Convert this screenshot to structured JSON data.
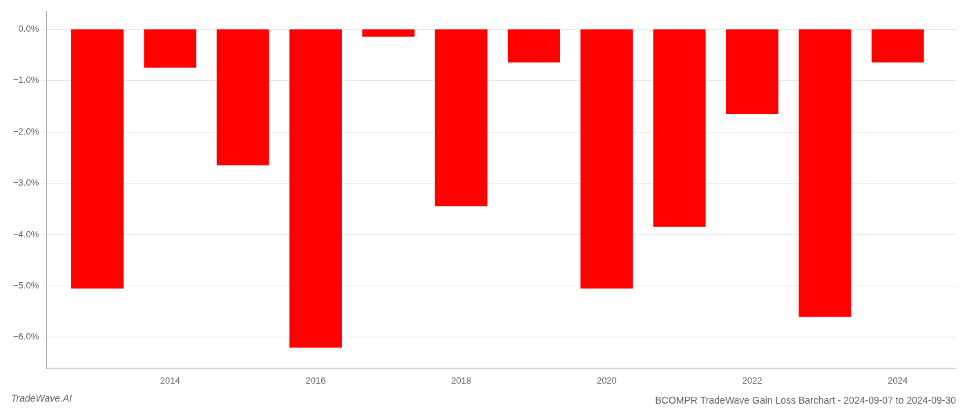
{
  "chart_data": {
    "type": "bar",
    "title": "BCOMPR TradeWave Gain Loss Barchart - 2024-09-07 to 2024-09-30",
    "annotations": [
      "TradeWave.AI"
    ],
    "x": [
      2013,
      2014,
      2015,
      2016,
      2017,
      2018,
      2019,
      2020,
      2021,
      2022,
      2023,
      2024
    ],
    "values": [
      -5.05,
      -0.75,
      -2.65,
      -6.2,
      -0.15,
      -3.45,
      -0.65,
      -5.05,
      -3.85,
      -1.65,
      -5.6,
      -0.65
    ],
    "color": "#ff0000",
    "xlim": [
      2012.3,
      2024.8
    ],
    "xticks": [
      2014,
      2016,
      2018,
      2020,
      2022,
      2024
    ],
    "ylim": [
      -6.6,
      0.35
    ],
    "yticks": [
      {
        "value": 0.0,
        "label": "0.0%"
      },
      {
        "value": -1.0,
        "label": "−1.0%"
      },
      {
        "value": -2.0,
        "label": "−2.0%"
      },
      {
        "value": -3.0,
        "label": "−3.0%"
      },
      {
        "value": -4.0,
        "label": "−4.0%"
      },
      {
        "value": -5.0,
        "label": "−5.0%"
      },
      {
        "value": -6.0,
        "label": "−6.0%"
      }
    ],
    "grid": true
  }
}
